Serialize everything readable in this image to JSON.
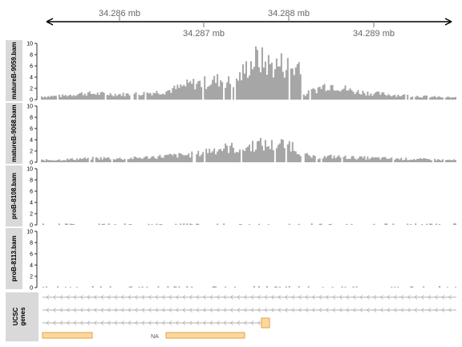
{
  "genome_axis": {
    "ticks_top": [
      "34.286 mb",
      "34.288 mb"
    ],
    "ticks_bottom": [
      "34.287 mb",
      "34.289 mb"
    ]
  },
  "tracks": [
    {
      "label": "matureB-9059.bam",
      "y_ticks": [
        "0",
        "2",
        "4",
        "6",
        "8",
        "10"
      ]
    },
    {
      "label": "matureB-9068.bam",
      "y_ticks": [
        "0",
        "2",
        "4",
        "6",
        "8",
        "10"
      ]
    },
    {
      "label": "proB-8108.bam",
      "y_ticks": [
        "0",
        "2",
        "4",
        "6",
        "8",
        "10"
      ]
    },
    {
      "label": "proB-8113.bam",
      "y_ticks": [
        "0",
        "2",
        "4",
        "6",
        "8",
        "10"
      ]
    }
  ],
  "gene_track": {
    "label_line1": "UCSC",
    "label_line2": "genes",
    "na_label": "NA"
  },
  "colors": {
    "coverage": "#a6a6a6",
    "panel_strip": "#d9d9d9",
    "gene_fill": "#fdd79c",
    "gene_stroke": "#e0a64c",
    "transcript_line": "#b0b0b0"
  },
  "chart_data": [
    {
      "type": "area",
      "series": [
        {
          "name": "matureB-9059.bam",
          "profile": [
            [
              0,
              0.6
            ],
            [
              0.05,
              0.7
            ],
            [
              0.1,
              1.2
            ],
            [
              0.15,
              1.1
            ],
            [
              0.2,
              1.0
            ],
            [
              0.25,
              1.2
            ],
            [
              0.3,
              1.6
            ],
            [
              0.33,
              2.2
            ],
            [
              0.36,
              3.0
            ],
            [
              0.4,
              3.3
            ],
            [
              0.43,
              3.8
            ],
            [
              0.46,
              3.2
            ],
            [
              0.48,
              4.5
            ],
            [
              0.5,
              6.5
            ],
            [
              0.52,
              7.8
            ],
            [
              0.54,
              7.0
            ],
            [
              0.56,
              6.4
            ],
            [
              0.58,
              6.8
            ],
            [
              0.6,
              6.2
            ],
            [
              0.615,
              5.8
            ],
            [
              0.625,
              8.2
            ],
            [
              0.63,
              0.8
            ],
            [
              0.65,
              1.5
            ],
            [
              0.68,
              2.6
            ],
            [
              0.7,
              2.8
            ],
            [
              0.72,
              2.4
            ],
            [
              0.75,
              1.6
            ],
            [
              0.8,
              1.2
            ],
            [
              0.85,
              0.9
            ],
            [
              0.9,
              0.7
            ],
            [
              0.95,
              0.5
            ],
            [
              1,
              0.4
            ]
          ]
        }
      ],
      "ylim": [
        0,
        10
      ]
    },
    {
      "type": "area",
      "series": [
        {
          "name": "matureB-9068.bam",
          "profile": [
            [
              0,
              0.4
            ],
            [
              0.05,
              0.5
            ],
            [
              0.1,
              0.7
            ],
            [
              0.15,
              0.8
            ],
            [
              0.2,
              0.7
            ],
            [
              0.25,
              0.9
            ],
            [
              0.3,
              1.2
            ],
            [
              0.35,
              1.4
            ],
            [
              0.38,
              1.6
            ],
            [
              0.4,
              2.2
            ],
            [
              0.43,
              2.6
            ],
            [
              0.46,
              2.8
            ],
            [
              0.48,
              2.4
            ],
            [
              0.5,
              3.0
            ],
            [
              0.52,
              3.5
            ],
            [
              0.55,
              3.2
            ],
            [
              0.57,
              3.4
            ],
            [
              0.6,
              3.6
            ],
            [
              0.62,
              2.2
            ],
            [
              0.64,
              1.3
            ],
            [
              0.66,
              0.9
            ],
            [
              0.7,
              1.1
            ],
            [
              0.75,
              0.9
            ],
            [
              0.8,
              0.8
            ],
            [
              0.85,
              0.7
            ],
            [
              0.9,
              0.6
            ],
            [
              0.95,
              0.5
            ],
            [
              1,
              0.4
            ]
          ]
        }
      ],
      "ylim": [
        0,
        10
      ]
    },
    {
      "type": "area",
      "series": [
        {
          "name": "proB-8108.bam",
          "profile": [
            [
              0,
              0.05
            ],
            [
              0.2,
              0.1
            ],
            [
              0.4,
              0.15
            ],
            [
              0.5,
              0.2
            ],
            [
              0.6,
              0.15
            ],
            [
              0.8,
              0.1
            ],
            [
              1,
              0.05
            ]
          ]
        }
      ],
      "ylim": [
        0,
        10
      ]
    },
    {
      "type": "area",
      "series": [
        {
          "name": "proB-8113.bam",
          "profile": [
            [
              0,
              0.05
            ],
            [
              0.2,
              0.1
            ],
            [
              0.4,
              0.15
            ],
            [
              0.5,
              0.25
            ],
            [
              0.6,
              0.15
            ],
            [
              0.8,
              0.1
            ],
            [
              1,
              0.05
            ]
          ]
        }
      ],
      "ylim": [
        0,
        10
      ]
    }
  ]
}
